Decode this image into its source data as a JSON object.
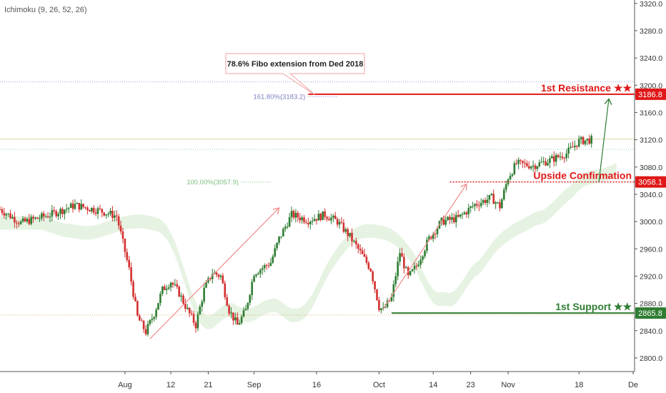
{
  "indicator_label": "Ichimoku (9, 26, 52, 26)",
  "colors": {
    "resistance": "#e01818",
    "support": "#2e7d32",
    "bull": "#2e7d32",
    "bear": "#d32f2f",
    "arrow_pink": "#f08a8a",
    "arrow_green": "#2e7d32",
    "cloud_green": "#e3f2e0",
    "cloud_red": "#fbe2e2",
    "fib_161": "#7d7fc4",
    "fib_100": "#7fbf7f",
    "axis_text": "#333333"
  },
  "chart_data": {
    "type": "candlestick",
    "title": "",
    "y_ticks": [
      2800,
      2840,
      2880,
      2920,
      2960,
      3000,
      3040,
      3080,
      3120,
      3160,
      3200,
      3240,
      3280,
      3320
    ],
    "y_tick_labels": [
      "2800.0",
      "2840.0",
      "2880.0",
      "2920.0",
      "2960.0",
      "3000.0",
      "3040.0",
      "3080.0",
      "3120.0",
      "3160.0",
      "3200.0",
      "3240.0",
      "3280.0",
      "3320.0"
    ],
    "ylim": [
      2780,
      3325
    ],
    "x_ticks": [
      {
        "label": "Aug",
        "day": 30
      },
      {
        "label": "12",
        "day": 41
      },
      {
        "label": "21",
        "day": 50
      },
      {
        "label": "Sep",
        "day": 61
      },
      {
        "label": "16",
        "day": 76
      },
      {
        "label": "Oct",
        "day": 91
      },
      {
        "label": "14",
        "day": 104
      },
      {
        "label": "23",
        "day": 113
      },
      {
        "label": "Nov",
        "day": 122
      },
      {
        "label": "18",
        "day": 139
      },
      {
        "label": "De",
        "day": 152
      }
    ],
    "xlim": [
      0,
      152
    ],
    "price_path": [
      [
        0,
        3018
      ],
      [
        5,
        2998
      ],
      [
        12,
        3010
      ],
      [
        18,
        3024
      ],
      [
        24,
        3016
      ],
      [
        28,
        3008
      ],
      [
        31,
        2930
      ],
      [
        33,
        2860
      ],
      [
        35,
        2838
      ],
      [
        37,
        2865
      ],
      [
        39,
        2900
      ],
      [
        41,
        2912
      ],
      [
        43,
        2895
      ],
      [
        45,
        2870
      ],
      [
        47,
        2848
      ],
      [
        49,
        2900
      ],
      [
        51,
        2925
      ],
      [
        53,
        2920
      ],
      [
        55,
        2870
      ],
      [
        57,
        2848
      ],
      [
        59,
        2870
      ],
      [
        61,
        2925
      ],
      [
        63,
        2932
      ],
      [
        65,
        2940
      ],
      [
        67,
        2975
      ],
      [
        70,
        3010
      ],
      [
        74,
        3002
      ],
      [
        78,
        3010
      ],
      [
        81,
        3000
      ],
      [
        84,
        2978
      ],
      [
        87,
        2950
      ],
      [
        89,
        2930
      ],
      [
        91,
        2875
      ],
      [
        92,
        2870
      ],
      [
        94,
        2888
      ],
      [
        96,
        2955
      ],
      [
        98,
        2918
      ],
      [
        100,
        2935
      ],
      [
        103,
        2975
      ],
      [
        106,
        3000
      ],
      [
        110,
        3005
      ],
      [
        114,
        3025
      ],
      [
        118,
        3035
      ],
      [
        120,
        3022
      ],
      [
        122,
        3065
      ],
      [
        124,
        3085
      ],
      [
        128,
        3082
      ],
      [
        132,
        3090
      ],
      [
        136,
        3100
      ],
      [
        139,
        3118
      ],
      [
        142,
        3120
      ]
    ],
    "horizontal_levels": [
      {
        "name": "1st Resistance",
        "label": "1st Resistance ★★",
        "value": 3186.8,
        "badge": "3186.8",
        "role": "resistance",
        "start_day": 74
      },
      {
        "name": "Upside Confirmation",
        "label": "Upside Confirmation",
        "value": 3058.1,
        "badge": "3058.1",
        "role": "confirmation",
        "start_day": 108
      },
      {
        "name": "1st Support",
        "label": "1st Support ★★",
        "value": 2865.8,
        "badge": "2865.8",
        "role": "support",
        "start_day": 94
      }
    ],
    "fibonacci": [
      {
        "label": "161.80%(3183.2)",
        "value": 3183.2,
        "start_day": 74
      },
      {
        "label": "100.00%(3057.9)",
        "value": 3057.9,
        "start_day": 58
      }
    ],
    "reference_lines": [
      {
        "value": 3205,
        "style": "dotted-blue"
      },
      {
        "value": 3121,
        "style": "solid-beige"
      },
      {
        "value": 3106,
        "style": "dotted-cyan"
      },
      {
        "value": 2863,
        "style": "dotted-orange"
      }
    ],
    "annotation": {
      "text": "78.6% Fibo extension from Ded 2018",
      "anchor_day": 74,
      "anchor_value": 3183.2
    },
    "arrows": [
      {
        "from": [
          36,
          2828
        ],
        "to": [
          67,
          3020
        ],
        "color": "pink"
      },
      {
        "from": [
          92,
          2872
        ],
        "to": [
          112,
          3055
        ],
        "color": "pink"
      },
      {
        "from": [
          150,
          3058
        ],
        "to": [
          153,
          3180
        ],
        "color": "green"
      }
    ]
  }
}
